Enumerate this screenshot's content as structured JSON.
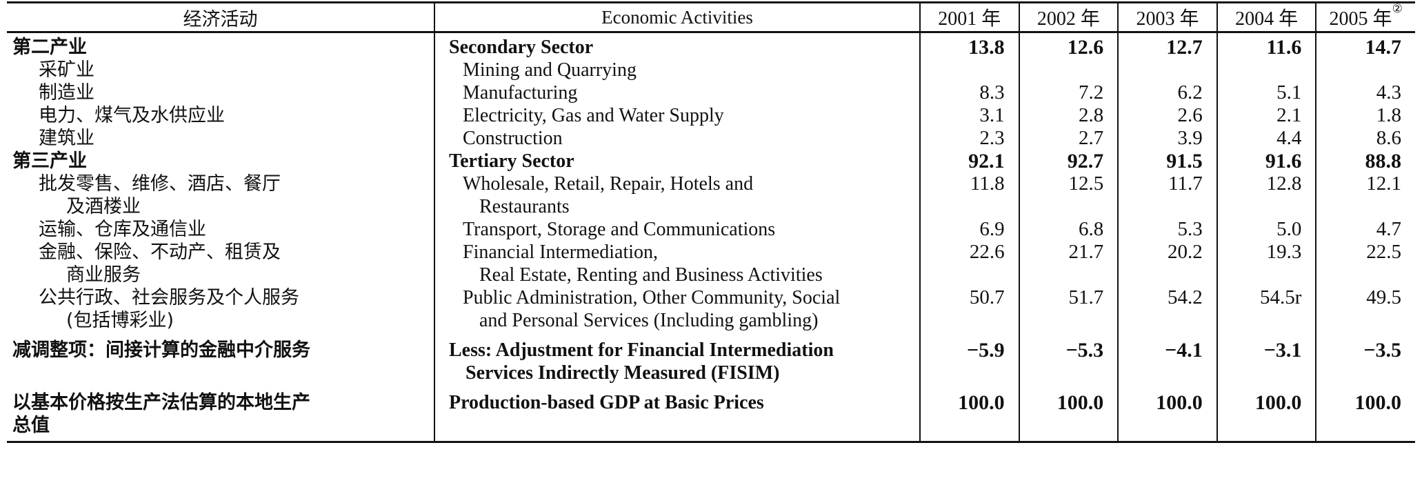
{
  "header": {
    "zh": "经济活动",
    "en": "Economic Activities",
    "years": [
      "2001 年",
      "2002 年",
      "2003 年",
      "2004 年",
      "2005 年"
    ],
    "note_mark": "②"
  },
  "rows": [
    {
      "zh": "第二产业",
      "zh2": "",
      "en": "Secondary Sector",
      "en2": "",
      "values": [
        "13.8",
        "12.6",
        "12.7",
        "11.6",
        "14.7"
      ]
    },
    {
      "zh": "采矿业",
      "zh2": "",
      "en": "Mining and Quarrying",
      "en2": "",
      "values": [
        "",
        "",
        "",
        "",
        ""
      ]
    },
    {
      "zh": "制造业",
      "zh2": "",
      "en": "Manufacturing",
      "en2": "",
      "values": [
        "8.3",
        "7.2",
        "6.2",
        "5.1",
        "4.3"
      ]
    },
    {
      "zh": "电力、煤气及水供应业",
      "zh2": "",
      "en": "Electricity, Gas and Water Supply",
      "en2": "",
      "values": [
        "3.1",
        "2.8",
        "2.6",
        "2.1",
        "1.8"
      ]
    },
    {
      "zh": "建筑业",
      "zh2": "",
      "en": "Construction",
      "en2": "",
      "values": [
        "2.3",
        "2.7",
        "3.9",
        "4.4",
        "8.6"
      ]
    },
    {
      "zh": "第三产业",
      "zh2": "",
      "en": "Tertiary Sector",
      "en2": "",
      "values": [
        "92.1",
        "92.7",
        "91.5",
        "91.6",
        "88.8"
      ]
    },
    {
      "zh": "批发零售、维修、酒店、餐厅",
      "zh2": "及酒楼业",
      "en": "Wholesale, Retail, Repair, Hotels and",
      "en2": "Restaurants",
      "values": [
        "11.8",
        "12.5",
        "11.7",
        "12.8",
        "12.1"
      ]
    },
    {
      "zh": "运输、仓库及通信业",
      "zh2": "",
      "en": "Transport, Storage and Communications",
      "en2": "",
      "values": [
        "6.9",
        "6.8",
        "5.3",
        "5.0",
        "4.7"
      ]
    },
    {
      "zh": "金融、保险、不动产、租赁及",
      "zh2": "商业服务",
      "en": "Financial Intermediation,",
      "en2": "Real Estate, Renting and Business Activities",
      "values": [
        "22.6",
        "21.7",
        "20.2",
        "19.3",
        "22.5"
      ]
    },
    {
      "zh": "公共行政、社会服务及个人服务",
      "zh2": "(包括博彩业)",
      "en": "Public Administration, Other Community, Social",
      "en2": "and Personal Services (Including gambling)",
      "values": [
        "50.7",
        "51.7",
        "54.2",
        "54.5r",
        "49.5"
      ]
    },
    {
      "zh": "减调整项：间接计算的金融中介服务",
      "zh2": "",
      "en": "Less: Adjustment for Financial Intermediation",
      "en2": "Services Indirectly Measured (FISIM)",
      "values": [
        "−5.9",
        "−5.3",
        "−4.1",
        "−3.1",
        "−3.5"
      ]
    },
    {
      "zh": "以基本价格按生产法估算的本地生产",
      "zh2": "总值",
      "en": "Production-based GDP at Basic Prices",
      "en2": "",
      "values": [
        "100.0",
        "100.0",
        "100.0",
        "100.0",
        "100.0"
      ]
    }
  ]
}
